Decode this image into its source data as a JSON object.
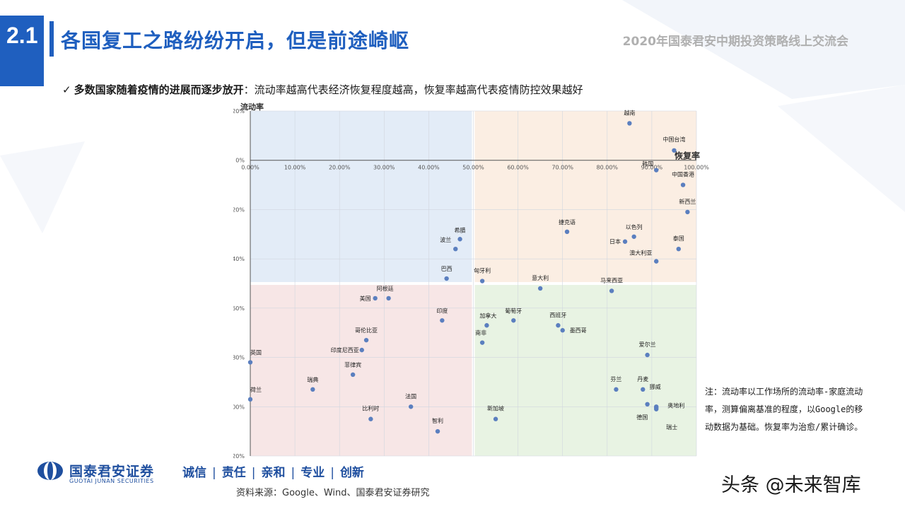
{
  "header": {
    "section_number": "2.1",
    "title": "各国复工之路纷纷开启，但是前途崎岖",
    "event_name": "2020年国泰君安中期投资策略线上交流会"
  },
  "bullet": {
    "bold": "多数国家随着疫情的进展而逐步放开",
    "rest": "：流动率越高代表经济恢复程度越高，恢复率越高代表疫情防控效果越好"
  },
  "chart_data": {
    "type": "scatter",
    "ylabel": "流动率",
    "xlabel": "恢复率",
    "xlim": [
      0,
      100
    ],
    "ylim": [
      -120,
      20
    ],
    "x_ticks": [
      "0.00%",
      "10.00%",
      "20.00%",
      "30.00%",
      "40.00%",
      "50.00%",
      "60.00%",
      "70.00%",
      "80.00%",
      "90.00%",
      "100.00%"
    ],
    "y_ticks": [
      "20%",
      "0%",
      "-20%",
      "-40%",
      "-60%",
      "-80%",
      "-100%",
      "-120%"
    ],
    "grid": true,
    "quadrant_split": {
      "x": 50,
      "y": -50
    },
    "quadrant_colors": {
      "top_left": "#e3ecf7",
      "top_right": "#fbeee3",
      "bottom_left": "#f7e6e6",
      "bottom_right": "#e8f3e3"
    },
    "point_color": "#5b7fbf",
    "points": [
      {
        "name": "越南",
        "x": 85,
        "y": 15
      },
      {
        "name": "中国台湾",
        "x": 95,
        "y": 4
      },
      {
        "name": "韩国",
        "x": 91,
        "y": -4
      },
      {
        "name": "中国香港",
        "x": 97,
        "y": -10
      },
      {
        "name": "新西兰",
        "x": 98,
        "y": -21
      },
      {
        "name": "捷克语",
        "x": 71,
        "y": -29
      },
      {
        "name": "以色列",
        "x": 86,
        "y": -31
      },
      {
        "name": "日本",
        "x": 84,
        "y": -33
      },
      {
        "name": "泰国",
        "x": 96,
        "y": -36
      },
      {
        "name": "澳大利亚",
        "x": 91,
        "y": -41
      },
      {
        "name": "希腊",
        "x": 47,
        "y": -32
      },
      {
        "name": "波兰",
        "x": 46,
        "y": -36
      },
      {
        "name": "巴西",
        "x": 44,
        "y": -48
      },
      {
        "name": "匈牙利",
        "x": 52,
        "y": -49
      },
      {
        "name": "意大利",
        "x": 65,
        "y": -52
      },
      {
        "name": "马来西亚",
        "x": 81,
        "y": -53
      },
      {
        "name": "美国",
        "x": 28,
        "y": -56
      },
      {
        "name": "阿根廷",
        "x": 31,
        "y": -56
      },
      {
        "name": "印度",
        "x": 43,
        "y": -65
      },
      {
        "name": "加拿大",
        "x": 53,
        "y": -67
      },
      {
        "name": "葡萄牙",
        "x": 59,
        "y": -65
      },
      {
        "name": "西班牙",
        "x": 69,
        "y": -67
      },
      {
        "name": "墨西哥",
        "x": 70,
        "y": -69
      },
      {
        "name": "南非",
        "x": 52,
        "y": -74
      },
      {
        "name": "哥伦比亚",
        "x": 26,
        "y": -73
      },
      {
        "name": "印度尼西亚",
        "x": 25,
        "y": -77
      },
      {
        "name": "菲律宾",
        "x": 23,
        "y": -87
      },
      {
        "name": "英国",
        "x": 0,
        "y": -82
      },
      {
        "name": "瑞典",
        "x": 14,
        "y": -93
      },
      {
        "name": "荷兰",
        "x": 0,
        "y": -97
      },
      {
        "name": "爱尔兰",
        "x": 89,
        "y": -79
      },
      {
        "name": "芬兰",
        "x": 82,
        "y": -93
      },
      {
        "name": "丹麦",
        "x": 88,
        "y": -93
      },
      {
        "name": "挪威",
        "x": 89,
        "y": -99
      },
      {
        "name": "奥地利",
        "x": 91,
        "y": -100
      },
      {
        "name": "德国",
        "x": 91,
        "y": -101
      },
      {
        "name": "瑞士",
        "x": 91,
        "y": -100.5
      },
      {
        "name": "法国",
        "x": 36,
        "y": -100
      },
      {
        "name": "比利时",
        "x": 27,
        "y": -105
      },
      {
        "name": "新加坡",
        "x": 55,
        "y": -105
      },
      {
        "name": "智利",
        "x": 42,
        "y": -110
      }
    ]
  },
  "note": {
    "text": "注：流动率以工作场所的流动率-家庭流动率，测算偏离基准的程度，以Google的移动数据为基础。恢复率为治愈/累计确诊。"
  },
  "footer": {
    "company_cn": "国泰君安证券",
    "company_en": "GUOTAI JUNAN SECURITIES",
    "slogan": [
      "诚信",
      "责任",
      "亲和",
      "专业",
      "创新"
    ],
    "source": "资料来源：Google、Wind、国泰君安证券研究",
    "watermark": "头条 @未来智库"
  },
  "colors": {
    "brand_blue": "#1f5fbf",
    "logo_blue": "#1f4f9f"
  }
}
